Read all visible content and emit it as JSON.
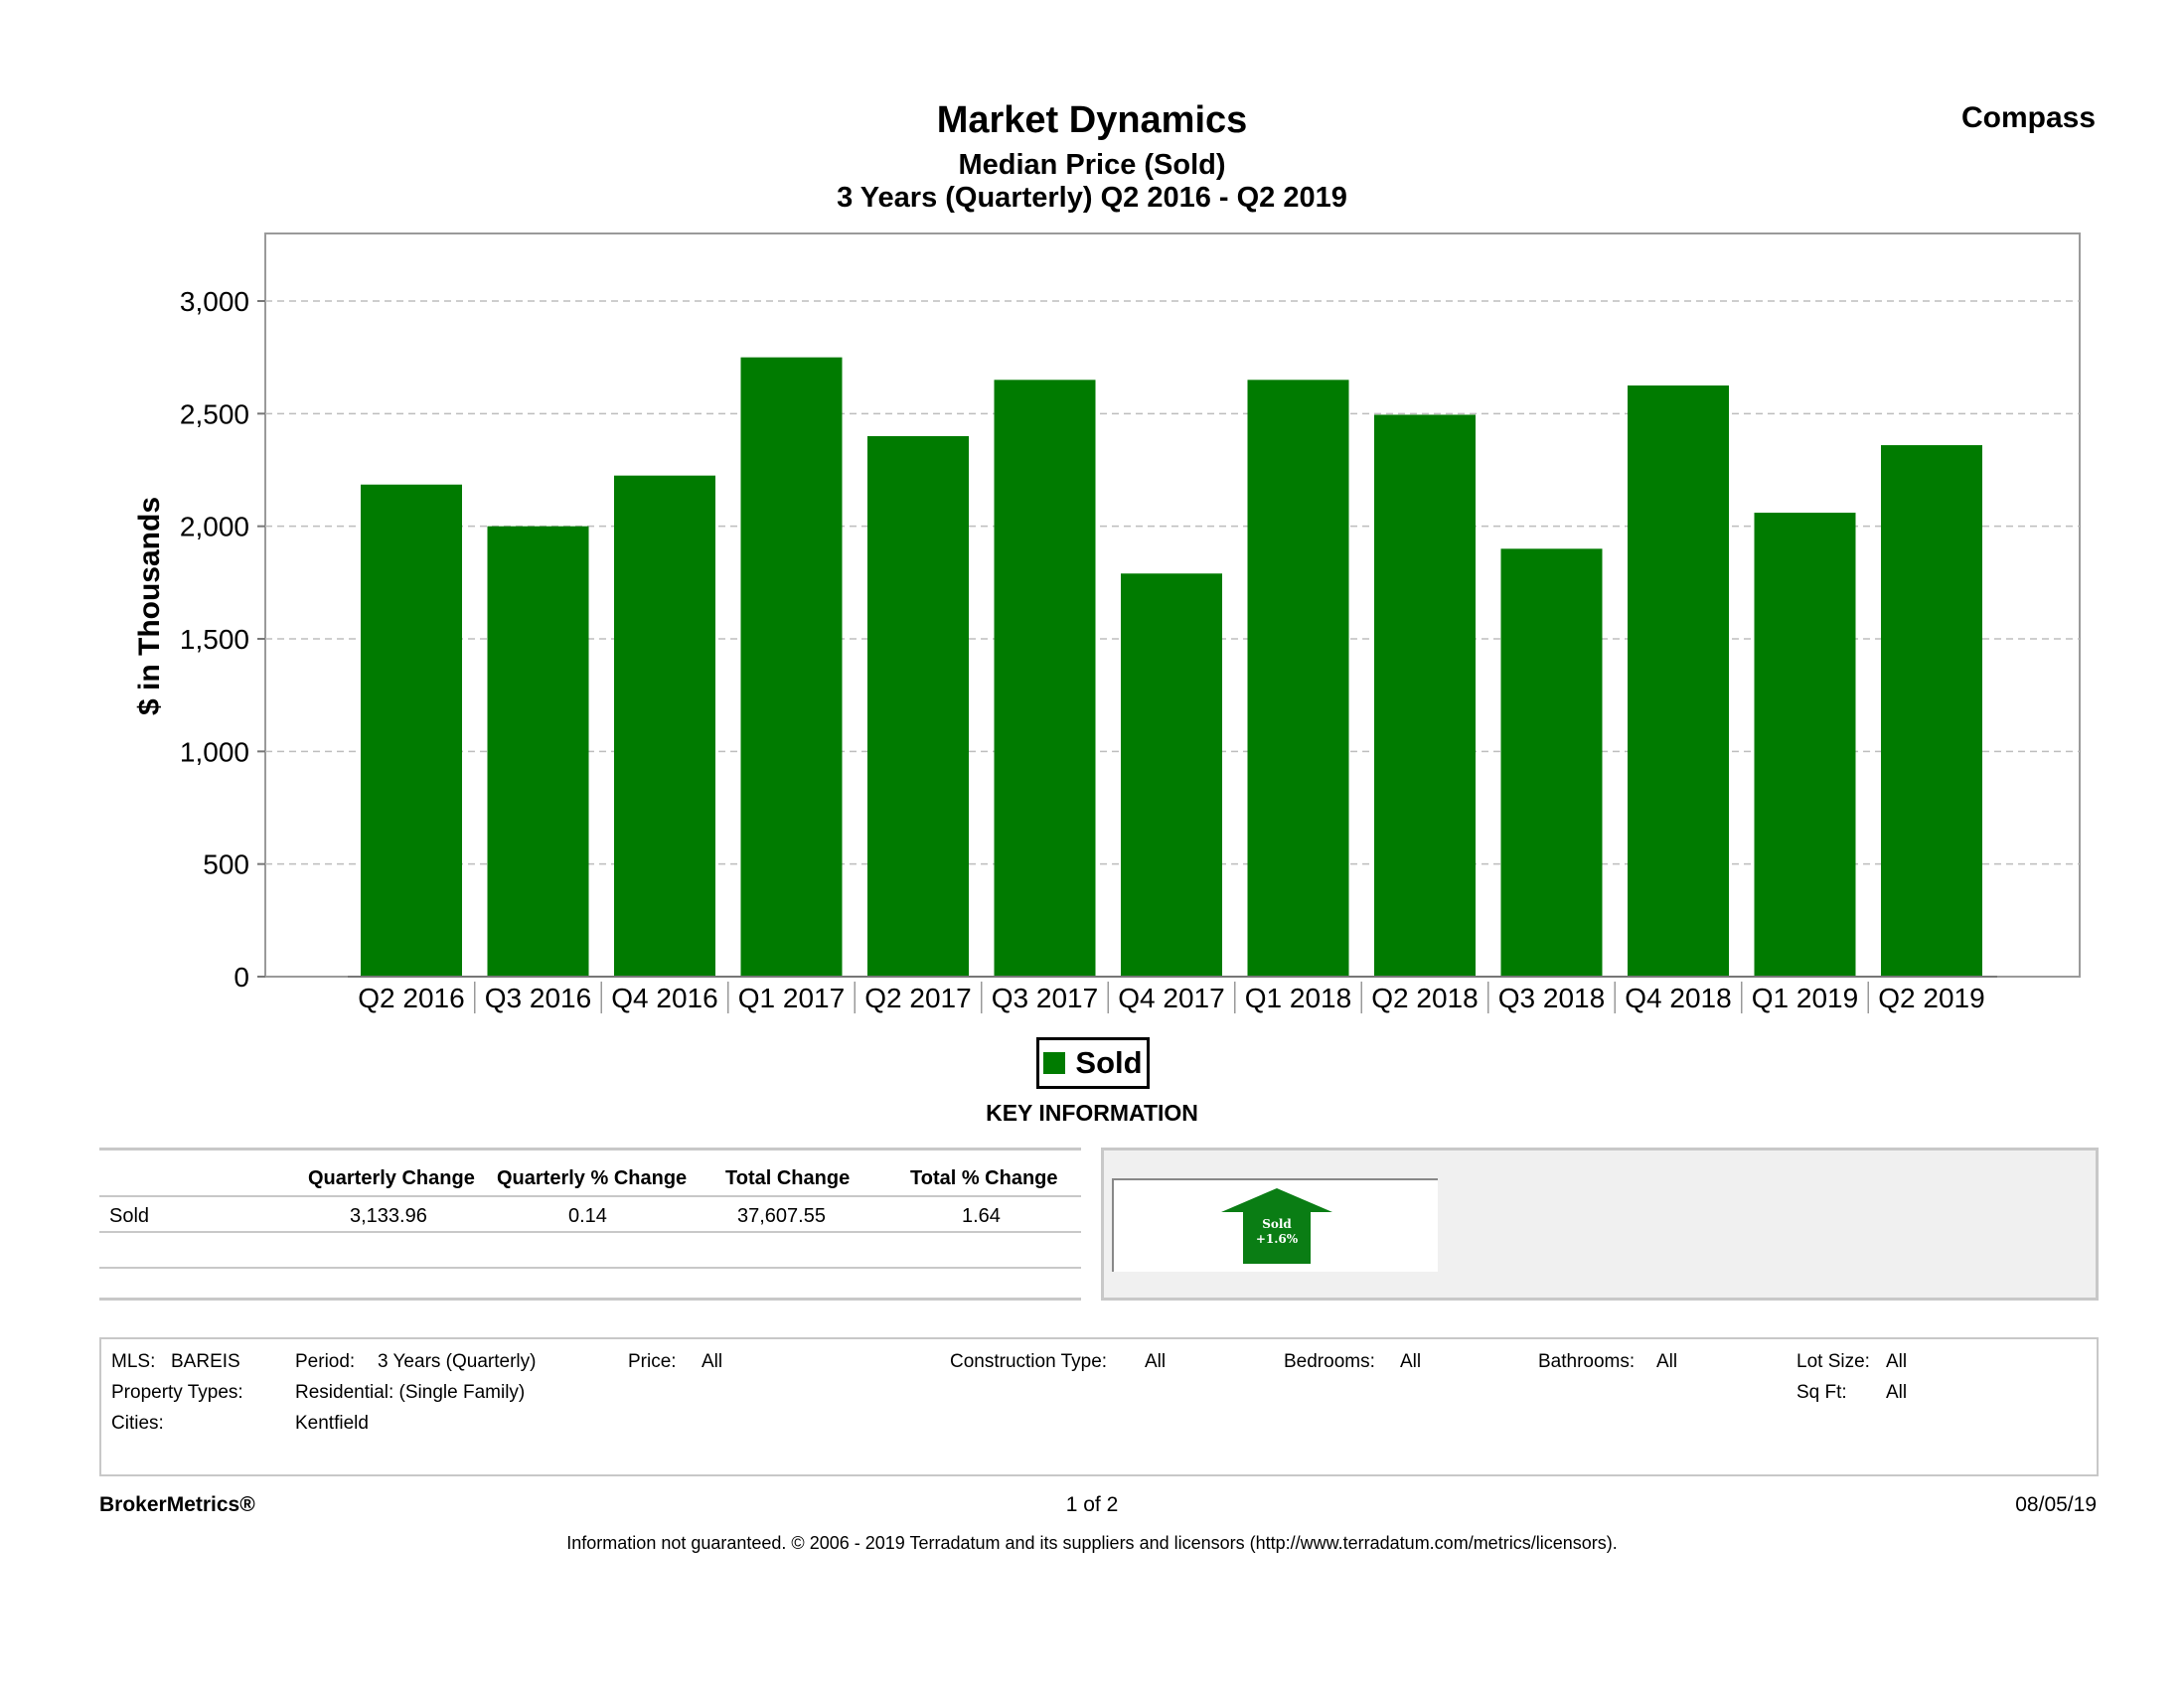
{
  "header": {
    "title": "Market Dynamics",
    "subtitle": "Median Price (Sold)",
    "period": "3 Years (Quarterly) Q2 2016 - Q2 2019",
    "brand": "Compass"
  },
  "chart_data": {
    "type": "bar",
    "categories": [
      "Q2 2016",
      "Q3 2016",
      "Q4 2016",
      "Q1 2017",
      "Q2 2017",
      "Q3 2017",
      "Q4 2017",
      "Q1 2018",
      "Q2 2018",
      "Q3 2018",
      "Q4 2018",
      "Q1 2019",
      "Q2 2019"
    ],
    "series": [
      {
        "name": "Sold",
        "values": [
          2185,
          2000,
          2225,
          2750,
          2400,
          2650,
          1790,
          2650,
          2495,
          1900,
          2625,
          2060,
          2360
        ],
        "color": "#007b00"
      }
    ],
    "ylabel": "$ in Thousands",
    "ylim": [
      0,
      3300
    ],
    "yticks": [
      0,
      500,
      1000,
      1500,
      2000,
      2500,
      3000
    ],
    "ytick_labels": [
      "0",
      "500",
      "1,000",
      "1,500",
      "2,000",
      "2,500",
      "3,000"
    ],
    "grid": true,
    "legend_placement": "bottom"
  },
  "legend": {
    "label": "Sold"
  },
  "key_info": {
    "heading": "KEY INFORMATION",
    "columns": [
      "Quarterly Change",
      "Quarterly % Change",
      "Total Change",
      "Total % Change"
    ],
    "rows": [
      {
        "label": "Sold",
        "values": [
          "3,133.96",
          "0.14",
          "37,607.55",
          "1.64"
        ]
      }
    ],
    "indicator": {
      "label": "Sold",
      "change": "+1.6%"
    }
  },
  "filters": {
    "mls_label": "MLS:",
    "mls_value": "BAREIS",
    "period_label": "Period:",
    "period_value": "3 Years (Quarterly)",
    "price_label": "Price:",
    "price_value": "All",
    "construction_label": "Construction Type:",
    "construction_value": "All",
    "bedrooms_label": "Bedrooms:",
    "bedrooms_value": "All",
    "bathrooms_label": "Bathrooms:",
    "bathrooms_value": "All",
    "lotsize_label": "Lot Size:",
    "lotsize_value": "All",
    "proptypes_label": "Property Types:",
    "proptypes_value": "Residential: (Single Family)",
    "sqft_label": "Sq Ft:",
    "sqft_value": "All",
    "cities_label": "Cities:",
    "cities_value": "Kentfield"
  },
  "footer": {
    "brand": "BrokerMetrics®",
    "page": "1 of 2",
    "date": "08/05/19",
    "disclaimer": "Information not guaranteed.  © 2006 - 2019 Terradatum and its suppliers and licensors (http://www.terradatum.com/metrics/licensors)."
  }
}
